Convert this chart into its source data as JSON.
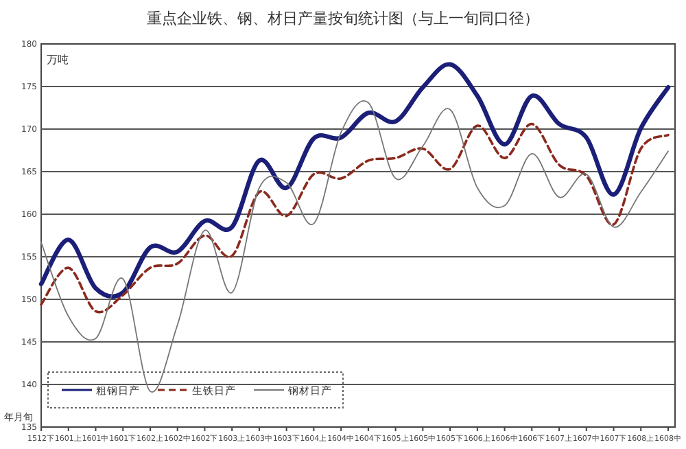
{
  "chart_data": {
    "type": "line",
    "title": "重点企业铁、钢、材日产量按旬统计图（与上一旬同口径）",
    "ylabel": "万吨",
    "xlabel": "年月旬",
    "categories": [
      "1512下",
      "1601上",
      "1601中",
      "1601下",
      "1602上",
      "1602中",
      "1602下",
      "1603上",
      "1603中",
      "1603下",
      "1604上",
      "1604中",
      "1604下",
      "1605上",
      "1605中",
      "1605下",
      "1606上",
      "1606中",
      "1606下",
      "1607上",
      "1607中",
      "1607下",
      "1608上",
      "1608中"
    ],
    "series": [
      {
        "name": "粗钢日产",
        "color": "#1b1f78",
        "line_style": "solid",
        "values": [
          151.8,
          157.0,
          151.3,
          150.8,
          156.1,
          155.6,
          159.2,
          158.5,
          166.3,
          163.1,
          168.9,
          169.0,
          171.9,
          170.9,
          174.9,
          177.6,
          173.9,
          168.2,
          173.9,
          170.6,
          169.0,
          162.3,
          170.1,
          174.9
        ]
      },
      {
        "name": "生铁日产",
        "color": "#8b2a1e",
        "line_style": "dashed",
        "values": [
          149.4,
          153.7,
          148.6,
          150.5,
          153.7,
          154.2,
          157.5,
          155.1,
          162.6,
          159.8,
          164.7,
          164.2,
          166.3,
          166.6,
          167.7,
          165.3,
          170.4,
          166.6,
          170.6,
          165.8,
          164.5,
          158.8,
          167.7,
          169.3
        ]
      },
      {
        "name": "钢材日产",
        "color": "#777777",
        "line_style": "solid",
        "values": [
          156.7,
          148.0,
          145.4,
          152.4,
          139.2,
          147.0,
          158.1,
          150.8,
          163.1,
          163.7,
          158.9,
          169.6,
          173.1,
          164.2,
          168.0,
          172.3,
          163.1,
          161.0,
          167.1,
          162.0,
          164.7,
          158.5,
          162.6,
          167.4
        ]
      }
    ],
    "ylim": [
      135,
      180
    ],
    "yticks": [
      135,
      140,
      145,
      150,
      155,
      160,
      165,
      170,
      175,
      180
    ],
    "grid": "y",
    "legend": "bottom left",
    "marker": "none"
  }
}
